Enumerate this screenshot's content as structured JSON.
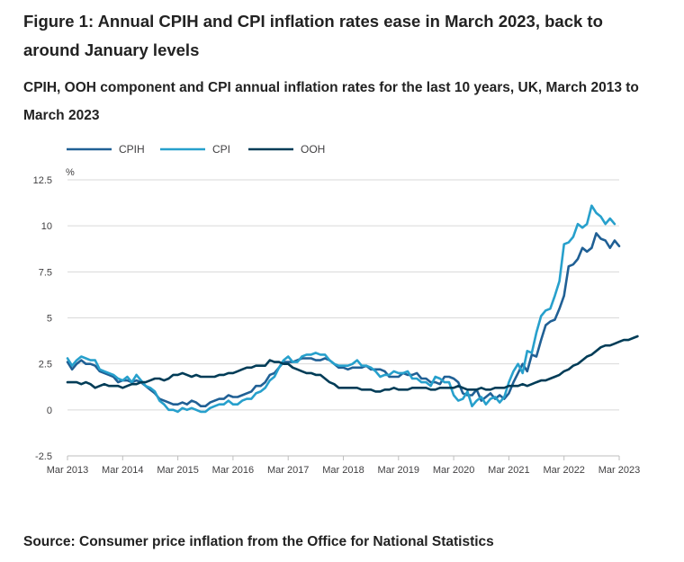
{
  "title": "Figure 1: Annual CPIH and CPI inflation rates ease in March 2023, back to around January levels",
  "subtitle": "CPIH, OOH component and CPI annual inflation rates for the last 10 years, UK, March 2013 to March 2023",
  "source": "Source: Consumer price inflation from the Office for National Statistics",
  "chart_data": {
    "type": "line",
    "ylabel": "%",
    "xlabel": "",
    "ylim": [
      -2.5,
      12.5
    ],
    "yticks": [
      -2.5,
      0,
      2.5,
      5,
      7.5,
      10,
      12.5
    ],
    "ytick_labels": [
      "-2.5",
      "0",
      "2.5",
      "5",
      "7.5",
      "10",
      "12.5"
    ],
    "x_start": "Mar 2013",
    "x_end": "Mar 2023",
    "xtick_labels": [
      "Mar 2013",
      "Mar 2014",
      "Mar 2015",
      "Mar 2016",
      "Mar 2017",
      "Mar 2018",
      "Mar 2019",
      "Mar 2020",
      "Mar 2021",
      "Mar 2022",
      "Mar 2023"
    ],
    "grid": true,
    "legend_position": "top-left",
    "series": [
      {
        "name": "CPIH",
        "color": "#206095",
        "values": [
          2.6,
          2.2,
          2.5,
          2.7,
          2.5,
          2.5,
          2.4,
          2.1,
          2.0,
          1.9,
          1.8,
          1.5,
          1.6,
          1.6,
          1.5,
          1.6,
          1.5,
          1.3,
          1.1,
          0.9,
          0.6,
          0.5,
          0.4,
          0.3,
          0.3,
          0.4,
          0.3,
          0.5,
          0.4,
          0.2,
          0.2,
          0.4,
          0.5,
          0.6,
          0.6,
          0.8,
          0.7,
          0.7,
          0.8,
          0.9,
          1.0,
          1.3,
          1.3,
          1.5,
          1.9,
          2.0,
          2.3,
          2.6,
          2.6,
          2.6,
          2.7,
          2.8,
          2.8,
          2.8,
          2.7,
          2.7,
          2.8,
          2.7,
          2.5,
          2.3,
          2.3,
          2.2,
          2.3,
          2.3,
          2.3,
          2.4,
          2.2,
          2.2,
          2.2,
          2.1,
          1.8,
          1.8,
          1.8,
          2.0,
          1.9,
          1.9,
          2.0,
          1.7,
          1.7,
          1.5,
          1.5,
          1.4,
          1.8,
          1.8,
          1.7,
          1.5,
          0.9,
          0.8,
          0.8,
          1.1,
          0.5,
          0.7,
          0.9,
          0.6,
          0.8,
          0.6,
          0.9,
          1.5,
          2.0,
          2.5,
          2.1,
          3.0,
          2.9,
          3.8,
          4.6,
          4.8,
          4.9,
          5.5,
          6.2,
          7.8,
          7.9,
          8.2,
          8.8,
          8.6,
          8.8,
          9.6,
          9.3,
          9.2,
          8.8,
          9.2,
          8.9
        ]
      },
      {
        "name": "CPI",
        "color": "#27a0cc",
        "values": [
          2.8,
          2.4,
          2.7,
          2.9,
          2.8,
          2.7,
          2.7,
          2.2,
          2.1,
          2.0,
          1.9,
          1.7,
          1.6,
          1.8,
          1.5,
          1.9,
          1.6,
          1.3,
          1.2,
          1.0,
          0.5,
          0.3,
          0.0,
          0.0,
          -0.1,
          0.1,
          0.0,
          0.1,
          0.0,
          -0.1,
          -0.1,
          0.1,
          0.2,
          0.3,
          0.3,
          0.5,
          0.3,
          0.3,
          0.5,
          0.6,
          0.6,
          0.9,
          1.0,
          1.2,
          1.6,
          1.8,
          2.3,
          2.7,
          2.9,
          2.6,
          2.6,
          2.9,
          3.0,
          3.0,
          3.1,
          3.0,
          3.0,
          2.7,
          2.5,
          2.4,
          2.4,
          2.4,
          2.5,
          2.7,
          2.4,
          2.4,
          2.3,
          2.1,
          1.8,
          1.9,
          1.9,
          2.1,
          2.0,
          2.0,
          2.1,
          1.7,
          1.7,
          1.5,
          1.5,
          1.3,
          1.8,
          1.7,
          1.5,
          1.5,
          0.8,
          0.5,
          0.6,
          1.0,
          0.2,
          0.5,
          0.7,
          0.3,
          0.6,
          0.7,
          0.4,
          0.7,
          1.5,
          2.1,
          2.5,
          2.0,
          3.2,
          3.1,
          4.2,
          5.1,
          5.4,
          5.5,
          6.2,
          7.0,
          9.0,
          9.1,
          9.4,
          10.1,
          9.9,
          10.1,
          11.1,
          10.7,
          10.5,
          10.1,
          10.4,
          10.1
        ]
      },
      {
        "name": "OOH",
        "color": "#003c57",
        "values": [
          1.5,
          1.5,
          1.5,
          1.4,
          1.5,
          1.4,
          1.2,
          1.3,
          1.4,
          1.3,
          1.3,
          1.3,
          1.2,
          1.3,
          1.4,
          1.4,
          1.5,
          1.5,
          1.6,
          1.7,
          1.7,
          1.6,
          1.7,
          1.9,
          1.9,
          2.0,
          1.9,
          1.8,
          1.9,
          1.8,
          1.8,
          1.8,
          1.8,
          1.9,
          1.9,
          2.0,
          2.0,
          2.1,
          2.2,
          2.3,
          2.3,
          2.4,
          2.4,
          2.4,
          2.7,
          2.6,
          2.6,
          2.5,
          2.5,
          2.3,
          2.2,
          2.1,
          2.0,
          2.0,
          1.9,
          1.9,
          1.7,
          1.5,
          1.4,
          1.2,
          1.2,
          1.2,
          1.2,
          1.2,
          1.1,
          1.1,
          1.1,
          1.0,
          1.0,
          1.1,
          1.1,
          1.2,
          1.1,
          1.1,
          1.1,
          1.2,
          1.2,
          1.2,
          1.2,
          1.1,
          1.1,
          1.2,
          1.2,
          1.2,
          1.2,
          1.3,
          1.2,
          1.1,
          1.1,
          1.1,
          1.2,
          1.1,
          1.1,
          1.2,
          1.2,
          1.2,
          1.3,
          1.3,
          1.3,
          1.4,
          1.3,
          1.4,
          1.5,
          1.6,
          1.6,
          1.7,
          1.8,
          1.9,
          2.1,
          2.2,
          2.4,
          2.5,
          2.7,
          2.9,
          3.0,
          3.2,
          3.4,
          3.5,
          3.5,
          3.6,
          3.7,
          3.8,
          3.8,
          3.9,
          4.0
        ]
      }
    ]
  }
}
